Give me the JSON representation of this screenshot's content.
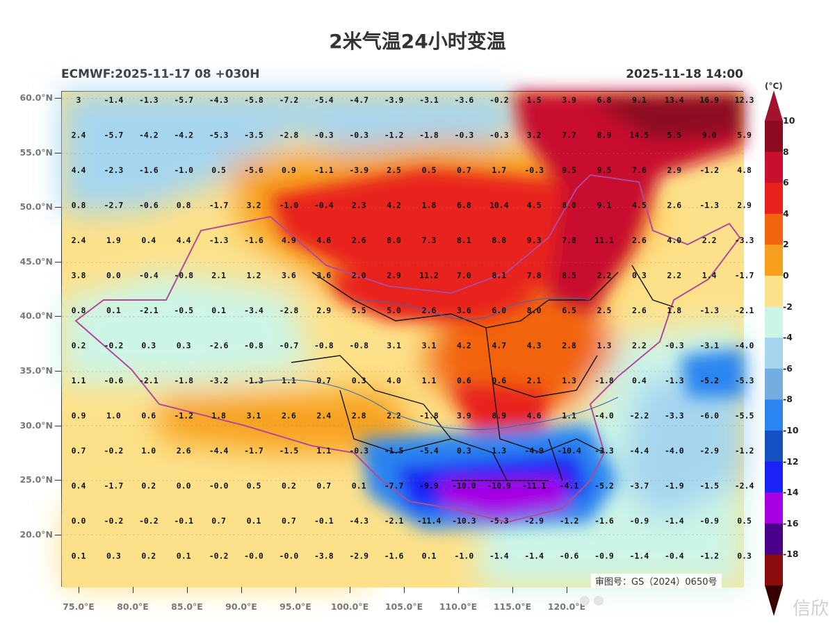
{
  "title": "2米气温24小时变温",
  "subtitle_left": "ECMWF:2025-11-17 08 +030H",
  "subtitle_right": "2025-11-18 14:00",
  "unit": "(°C)",
  "credit": "审图号：GS（2024）0650号",
  "watermark": "信欣",
  "lat_labels": [
    "60.0°N",
    "55.0°N",
    "50.0°N",
    "45.0°N",
    "40.0°N",
    "35.0°N",
    "30.0°N",
    "25.0°N",
    "20.0°N"
  ],
  "lon_labels": [
    "75.0°E",
    "80.0°E",
    "85.0°E",
    "90.0°E",
    "95.0°E",
    "100.0°E",
    "105.0°E",
    "110.0°E",
    "115.0°E",
    "120.0°E"
  ],
  "colorbar": {
    "labels": [
      "10",
      "8",
      "6",
      "4",
      "2",
      "0",
      "-2",
      "-4",
      "-6",
      "-8",
      "-10",
      "-12",
      "-14",
      "-16",
      "-18"
    ],
    "colors": [
      "#8c0a20",
      "#c8102e",
      "#e8211d",
      "#f2640e",
      "#f7a01f",
      "#fde18a",
      "#cdf5e6",
      "#a6d6ef",
      "#74aee0",
      "#2b85f0",
      "#1450c2",
      "#1a22f5",
      "#a600e3",
      "#4a008a",
      "#8a0c0c"
    ],
    "top_color": "#a3122e",
    "bottom_color": "#3a0000"
  },
  "grid_values": [
    [
      "3",
      "-1.4",
      "-1.3",
      "-5.7",
      "-4.3",
      "-5.8",
      "-7.2",
      "-5.4",
      "-4.7",
      "-3.9",
      "-3.1",
      "-3.6",
      "-0.2",
      "1.5",
      "3.9",
      "6.8",
      "9.1",
      "13.4",
      "16.9",
      "12.3"
    ],
    [
      "2.4",
      "-5.7",
      "-4.2",
      "-4.2",
      "-5.3",
      "-3.5",
      "-2.8",
      "-0.3",
      "-0.3",
      "-1.2",
      "-1.8",
      "-0.3",
      "-0.3",
      "3.2",
      "7.7",
      "8.9",
      "14.5",
      "5.5",
      "9.0",
      "5.9"
    ],
    [
      "4.4",
      "-2.3",
      "-1.6",
      "-1.0",
      "0.5",
      "-5.6",
      "0.9",
      "-1.1",
      "-3.9",
      "2.5",
      "0.5",
      "0.7",
      "1.7",
      "-0.3",
      "9.5",
      "9.5",
      "7.6",
      "2.9",
      "-1.2",
      "4.8"
    ],
    [
      "0.8",
      "-2.7",
      "-0.6",
      "0.8",
      "-1.7",
      "3.2",
      "-1.0",
      "-0.4",
      "2.3",
      "4.2",
      "1.8",
      "6.8",
      "10.4",
      "4.5",
      "8.0",
      "9.1",
      "4.5",
      "2.6",
      "-1.3",
      "2.9"
    ],
    [
      "2.4",
      "1.9",
      "0.4",
      "4.4",
      "-1.3",
      "-1.6",
      "4.9",
      "4.6",
      "2.6",
      "8.0",
      "7.3",
      "8.1",
      "8.8",
      "9.3",
      "7.8",
      "11.1",
      "2.6",
      "4.0",
      "2.2",
      "-3.3"
    ],
    [
      "3.8",
      "0.0",
      "-0.4",
      "-0.8",
      "2.1",
      "1.2",
      "3.6",
      "3.6",
      "2.0",
      "2.9",
      "11.2",
      "7.0",
      "8.1",
      "7.8",
      "8.5",
      "2.2",
      "0.3",
      "2.2",
      "1.4",
      "-1.7"
    ],
    [
      "0.8",
      "0.1",
      "-2.1",
      "-0.5",
      "0.1",
      "-3.4",
      "-2.8",
      "2.9",
      "5.5",
      "5.0",
      "2.6",
      "3.6",
      "6.0",
      "8.0",
      "6.5",
      "2.5",
      "2.6",
      "1.8",
      "-1.3",
      "-2.1"
    ],
    [
      "0.2",
      "-0.2",
      "0.3",
      "0.3",
      "-2.6",
      "-0.8",
      "-0.7",
      "-0.8",
      "-0.8",
      "3.1",
      "3.1",
      "4.2",
      "4.7",
      "4.3",
      "2.8",
      "1.3",
      "2.2",
      "-0.3",
      "-3.1",
      "-4.0"
    ],
    [
      "1.1",
      "-0.6",
      "-2.1",
      "-1.8",
      "-3.2",
      "-1.3",
      "1.1",
      "0.7",
      "0.3",
      "4.0",
      "1.1",
      "0.6",
      "0.6",
      "2.1",
      "1.3",
      "-1.8",
      "0.4",
      "-1.3",
      "-5.2",
      "-5.3"
    ],
    [
      "0.9",
      "1.0",
      "0.6",
      "-1.2",
      "1.8",
      "3.1",
      "2.6",
      "2.4",
      "2.8",
      "2.2",
      "-1.8",
      "3.9",
      "8.9",
      "4.6",
      "1.1",
      "-4.0",
      "-2.2",
      "-3.3",
      "-6.0",
      "-5.5"
    ],
    [
      "0.7",
      "-0.2",
      "1.0",
      "2.6",
      "-4.4",
      "-1.7",
      "-1.5",
      "1.1",
      "-0.3",
      "-1.5",
      "-5.4",
      "0.3",
      "1.3",
      "-4.9",
      "-10.4",
      "-3.3",
      "-4.4",
      "-4.0",
      "-2.9",
      "-1.2"
    ],
    [
      "0.4",
      "-1.7",
      "0.2",
      "0.0",
      "-0.0",
      "0.5",
      "0.2",
      "0.7",
      "0.1",
      "-7.7",
      "-9.9",
      "-10.0",
      "-10.9",
      "-11.1",
      "-4.1",
      "-5.2",
      "-3.7",
      "-1.9",
      "-1.5",
      "-2.4"
    ],
    [
      "0.0",
      "-0.2",
      "-0.2",
      "-0.1",
      "0.7",
      "0.1",
      "0.7",
      "-0.1",
      "-4.3",
      "-2.1",
      "-11.4",
      "-10.3",
      "-5.3",
      "-2.9",
      "-1.2",
      "-1.6",
      "-0.9",
      "-1.4",
      "-0.9",
      "0.5"
    ],
    [
      "0.1",
      "0.3",
      "0.2",
      "0.1",
      "-0.2",
      "-0.0",
      "-0.0",
      "-3.8",
      "-2.9",
      "-1.6",
      "0.1",
      "-1.0",
      "-1.4",
      "-1.4",
      "-0.6",
      "-0.9",
      "-1.4",
      "-0.4",
      "-1.2",
      "0.3"
    ]
  ]
}
